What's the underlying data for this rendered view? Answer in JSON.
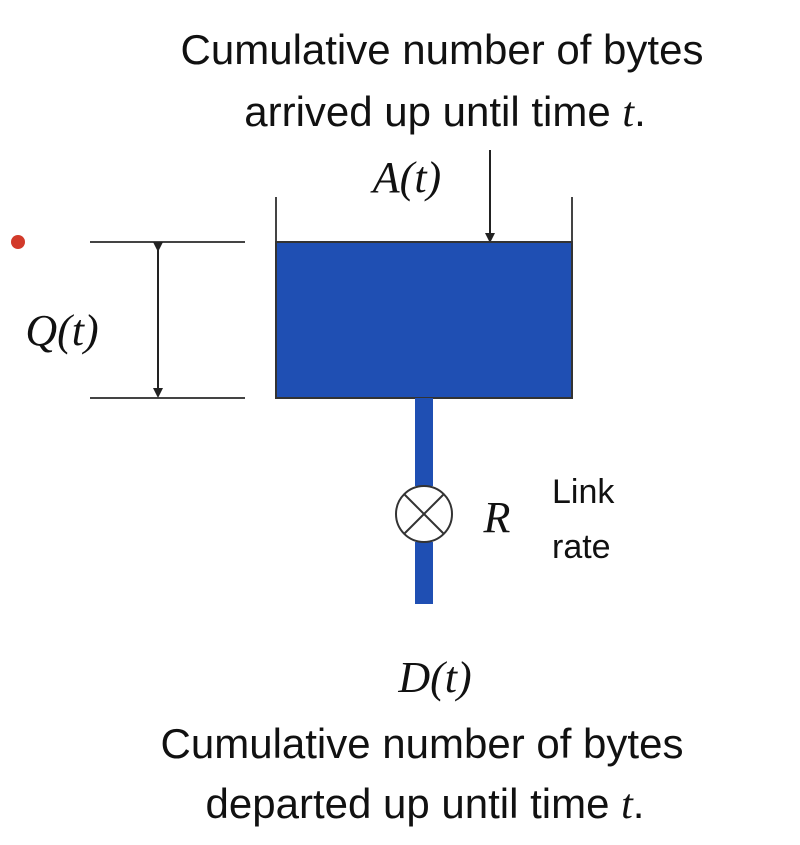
{
  "top_caption": {
    "line1": "Cumulative number of bytes",
    "line2_prefix": "arrived up until time ",
    "line2_var": "t",
    "line2_suffix": "."
  },
  "arrival_label": "A(t)",
  "queue_label": "Q(t)",
  "rate_symbol": "R",
  "link_rate_label": {
    "line1": "Link",
    "line2": "rate"
  },
  "departure_label": "D(t)",
  "bottom_caption": {
    "line1": "Cumulative number of bytes",
    "line2_prefix": "departed up until time ",
    "line2_var": "t",
    "line2_suffix": "."
  },
  "colors": {
    "water": "#1f4fb3",
    "marker": "#d23a2a",
    "line": "#333333"
  }
}
